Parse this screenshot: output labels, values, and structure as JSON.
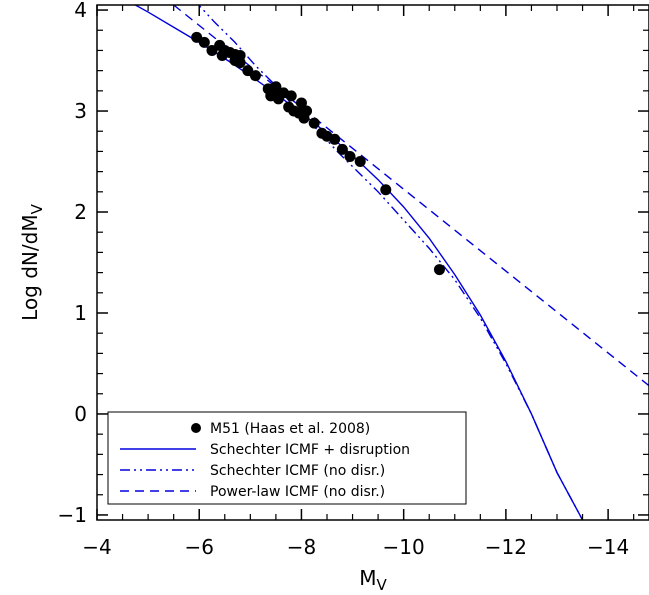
{
  "chart_data": {
    "type": "scatter",
    "title": "",
    "xlabel": "M",
    "xlabel_sub": "V",
    "ylabel": "Log dN/dM",
    "ylabel_sub": "V",
    "xlim": [
      -4,
      -14.8
    ],
    "ylim": [
      -1.05,
      4.05
    ],
    "xticks": [
      -4,
      -6,
      -8,
      -10,
      -12,
      -14
    ],
    "xtick_labels": [
      "−4",
      "−6",
      "−8",
      "−10",
      "−12",
      "−14"
    ],
    "yticks": [
      -1,
      0,
      1,
      2,
      3,
      4
    ],
    "ytick_labels": [
      "−1",
      "0",
      "1",
      "2",
      "3",
      "4"
    ],
    "grid": false,
    "legend_position": "bottom-left",
    "colors": {
      "data": "#000000",
      "model": "#0000dd"
    },
    "series": [
      {
        "name": "M51 (Haas et al. 2008)",
        "kind": "points",
        "x": [
          -5.95,
          -6.1,
          -6.25,
          -6.4,
          -6.45,
          -6.5,
          -6.6,
          -6.7,
          -6.7,
          -6.8,
          -6.8,
          -6.95,
          -7.1,
          -7.35,
          -7.4,
          -7.45,
          -7.5,
          -7.55,
          -7.65,
          -7.75,
          -7.8,
          -7.85,
          -7.95,
          -8.0,
          -8.05,
          -8.1,
          -8.25,
          -8.4,
          -8.5,
          -8.65,
          -8.8,
          -8.95,
          -9.15,
          -9.65,
          -10.7
        ],
        "y": [
          3.73,
          3.68,
          3.6,
          3.65,
          3.55,
          3.6,
          3.58,
          3.5,
          3.56,
          3.48,
          3.55,
          3.4,
          3.35,
          3.22,
          3.15,
          3.2,
          3.24,
          3.12,
          3.18,
          3.04,
          3.15,
          3.0,
          2.98,
          3.08,
          2.93,
          3.0,
          2.88,
          2.78,
          2.75,
          2.72,
          2.62,
          2.55,
          2.5,
          2.22,
          1.43
        ]
      },
      {
        "name": "Schechter ICMF + disruption",
        "kind": "solid",
        "x": [
          -4.0,
          -4.5,
          -5.0,
          -5.5,
          -6.0,
          -6.5,
          -7.0,
          -7.5,
          -8.0,
          -8.5,
          -9.0,
          -9.5,
          -10.0,
          -10.5,
          -11.0,
          -11.5,
          -12.0,
          -12.5,
          -13.0,
          -13.5
        ],
        "y": [
          4.25,
          4.12,
          3.98,
          3.83,
          3.68,
          3.52,
          3.35,
          3.17,
          2.98,
          2.78,
          2.56,
          2.32,
          2.05,
          1.74,
          1.38,
          0.98,
          0.52,
          0.0,
          -0.58,
          -1.05
        ]
      },
      {
        "name": "Schechter ICMF  (no disr.)",
        "kind": "dash-dot-dot",
        "x": [
          -5.9,
          -6.3,
          -6.7,
          -7.1,
          -7.5,
          -7.9,
          -8.3,
          -8.7,
          -9.1,
          -9.5,
          -10.0,
          -10.5,
          -11.0,
          -11.5,
          -12.0,
          -12.5,
          -13.0,
          -13.5
        ],
        "y": [
          4.1,
          3.88,
          3.68,
          3.45,
          3.25,
          3.02,
          2.82,
          2.6,
          2.4,
          2.2,
          1.92,
          1.64,
          1.33,
          0.95,
          0.5,
          0.0,
          -0.58,
          -1.05
        ]
      },
      {
        "name": "Power-law ICMF (no disr.)",
        "kind": "dashed",
        "x": [
          -5.5,
          -14.8
        ],
        "y": [
          4.05,
          0.28
        ]
      }
    ]
  }
}
